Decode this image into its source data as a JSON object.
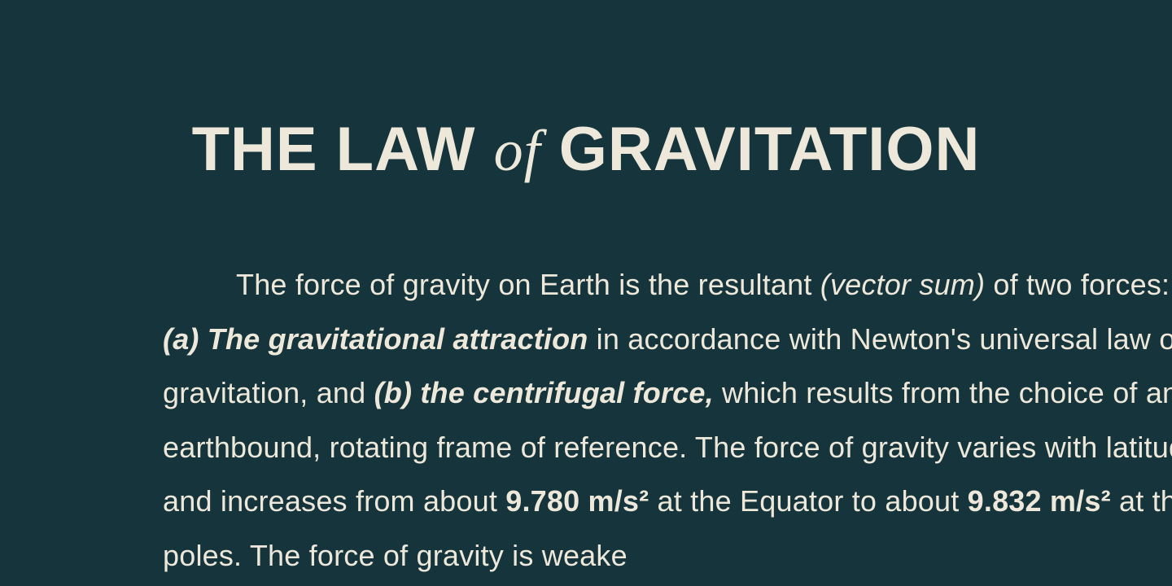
{
  "title": {
    "part1": "THE LAW",
    "of": "of",
    "part2": "GRAVITATION"
  },
  "body": {
    "t1": "The force of gravity on Earth is the resultant ",
    "i1": "(vector sum)",
    "t2": " of two forces: ",
    "bi1": "(a) The gravitational attraction",
    "t3": " in accordance with Newton's universal law of gravitation, and ",
    "bi2": "(b) the centrifugal force,",
    "t4": " which results from the choice of an earthbound, rotating frame of reference. The force of gravity varies with latitude and increases from about ",
    "b1": "9.780 m/s²",
    "t5": " at the Equator to about ",
    "b2": "9.832 m/s²",
    "t6": " at the poles. The force of gravity is weake"
  },
  "colors": {
    "background": "#15343c",
    "text": "#ede8da"
  },
  "typography": {
    "title_fontsize": 76,
    "title_weight": 700,
    "body_fontsize": 36,
    "body_lineheight": 1.85,
    "body_weight": 400
  }
}
